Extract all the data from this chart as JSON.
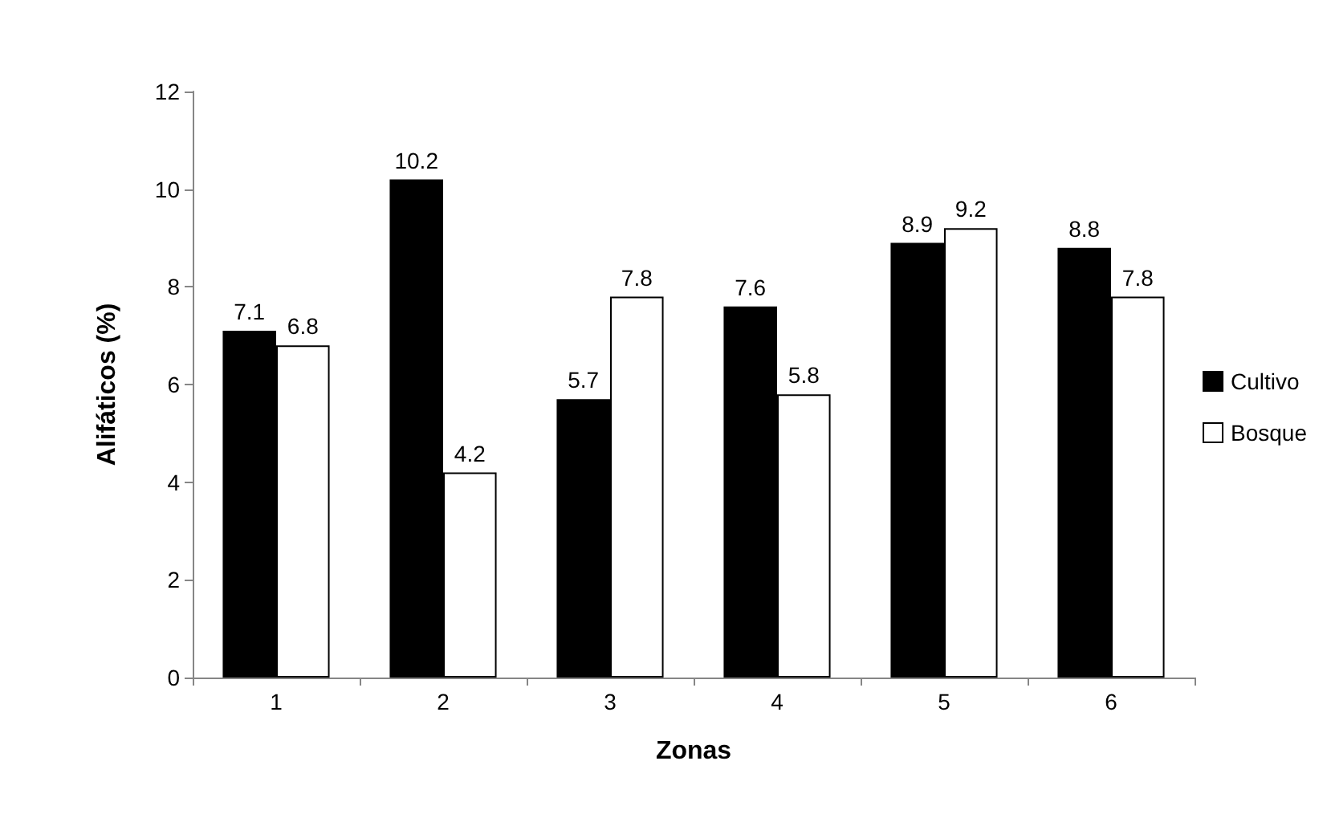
{
  "chart_data": {
    "type": "bar",
    "xlabel": "Zonas",
    "ylabel": "Alifáticos (%)",
    "categories": [
      "1",
      "2",
      "3",
      "4",
      "5",
      "6"
    ],
    "series": [
      {
        "name": "Cultivo",
        "color": "#000000",
        "values": [
          7.1,
          10.2,
          5.7,
          7.6,
          8.9,
          8.8
        ]
      },
      {
        "name": "Bosque",
        "color": "#ffffff",
        "values": [
          6.8,
          4.2,
          7.8,
          5.8,
          9.2,
          7.8
        ]
      }
    ],
    "ylim": [
      0,
      12
    ],
    "yticks": [
      0,
      2,
      4,
      6,
      8,
      10,
      12
    ],
    "grid": false,
    "legend": "right",
    "data_labels": true
  }
}
